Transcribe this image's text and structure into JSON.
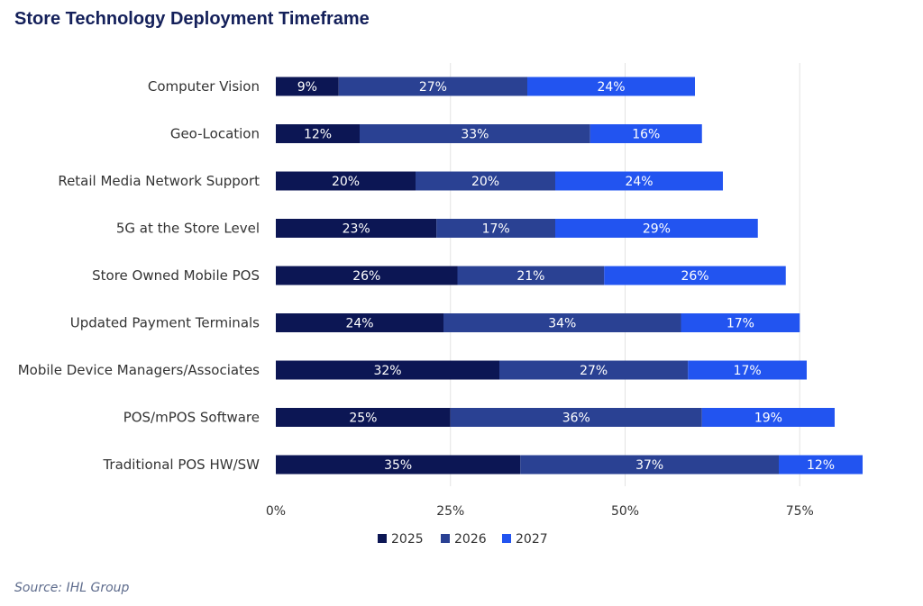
{
  "title": "Store Technology Deployment Timeframe",
  "source": "Source: IHL Group",
  "chart_data": {
    "type": "bar",
    "orientation": "horizontal",
    "stacked": true,
    "title": "Store Technology Deployment Timeframe",
    "categories": [
      "Computer Vision",
      "Geo-Location",
      "Retail Media Network Support",
      "5G at the Store Level",
      "Store Owned Mobile POS",
      "Updated Payment Terminals",
      "Mobile Device Managers/Associates",
      "POS/mPOS Software",
      "Traditional POS HW/SW"
    ],
    "series": [
      {
        "name": "2025",
        "color": "#0c1654",
        "values": [
          9,
          12,
          20,
          23,
          26,
          24,
          32,
          25,
          35
        ]
      },
      {
        "name": "2026",
        "color": "#2a4193",
        "values": [
          27,
          33,
          20,
          17,
          21,
          34,
          27,
          36,
          37
        ]
      },
      {
        "name": "2027",
        "color": "#2254f0",
        "values": [
          24,
          16,
          24,
          29,
          26,
          17,
          17,
          19,
          12
        ]
      }
    ],
    "xlim": [
      0,
      84
    ],
    "xticks": [
      0,
      25,
      50,
      75
    ],
    "xtick_labels": [
      "0%",
      "25%",
      "50%",
      "75%"
    ],
    "value_suffix": "%",
    "grid": "vertical",
    "legend_position": "bottom"
  }
}
